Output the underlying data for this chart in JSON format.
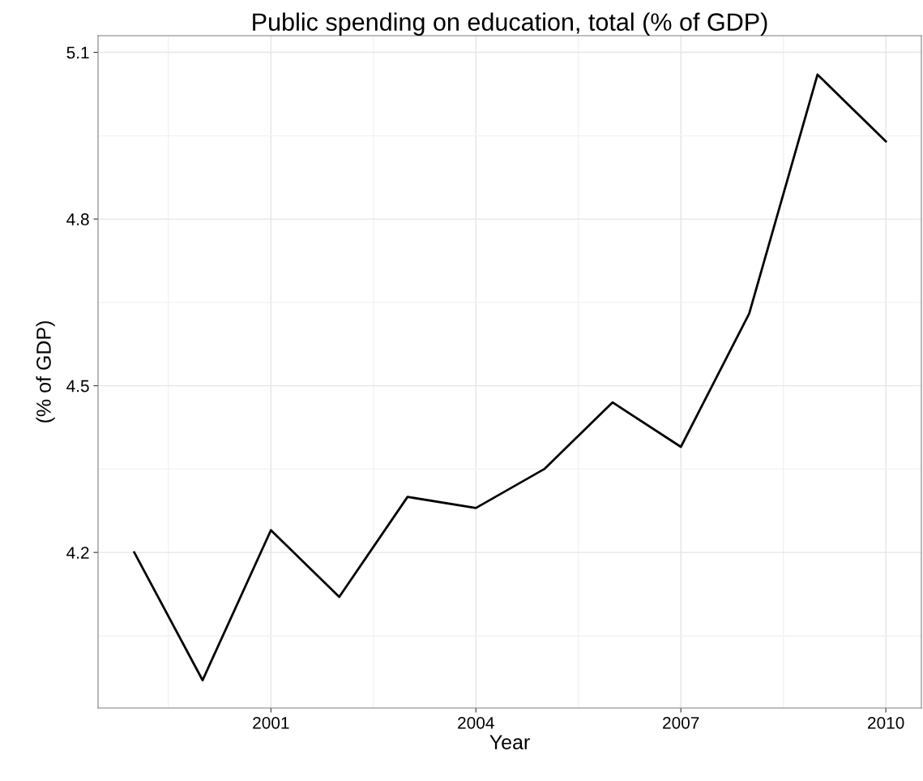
{
  "chart_data": {
    "type": "line",
    "title": "Public spending on education, total (% of GDP)",
    "xlabel": "Year",
    "ylabel": "(% of GDP)",
    "x": [
      1999,
      2000,
      2001,
      2002,
      2003,
      2004,
      2005,
      2006,
      2007,
      2008,
      2009,
      2010
    ],
    "series": [
      {
        "color": "#000000",
        "values": [
          4.2,
          3.97,
          4.24,
          4.12,
          4.3,
          4.28,
          4.35,
          4.47,
          4.39,
          4.63,
          5.06,
          4.94
        ]
      }
    ],
    "xlim": [
      1998.47,
      2010.52
    ],
    "ylim": [
      3.92,
      5.13
    ],
    "xticks": [
      2001,
      2004,
      2007,
      2010
    ],
    "yticks": [
      4.2,
      4.5,
      4.8,
      5.1
    ],
    "grid": true,
    "marker": "none",
    "line_style": "solid"
  }
}
